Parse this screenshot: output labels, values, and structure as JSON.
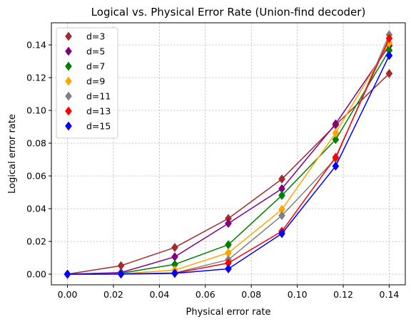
{
  "chart_data": {
    "type": "line",
    "title": "Logical vs. Physical Error Rate (Union-find decoder)",
    "xlabel": "Physical error rate",
    "ylabel": "Logical error rate",
    "xlim": [
      -0.007,
      0.147
    ],
    "ylim": [
      -0.0065,
      0.1535
    ],
    "xticks": [
      0.0,
      0.02,
      0.04,
      0.06,
      0.08,
      0.1,
      0.12,
      0.14
    ],
    "xtick_labels": [
      "0.00",
      "0.02",
      "0.04",
      "0.06",
      "0.08",
      "0.10",
      "0.12",
      "0.14"
    ],
    "yticks": [
      0.0,
      0.02,
      0.04,
      0.06,
      0.08,
      0.1,
      0.12,
      0.14
    ],
    "ytick_labels": [
      "0.00",
      "0.02",
      "0.04",
      "0.06",
      "0.08",
      "0.10",
      "0.12",
      "0.14"
    ],
    "grid": true,
    "legend_position": "top-left",
    "marker": "thin-diamond",
    "x": [
      0.0,
      0.0233,
      0.0467,
      0.07,
      0.0933,
      0.1167,
      0.14
    ],
    "series": [
      {
        "name": "d=3",
        "color": "#a52a2a",
        "values": [
          0.0,
          0.0052,
          0.0163,
          0.034,
          0.0581,
          0.0911,
          0.1225
        ]
      },
      {
        "name": "d=5",
        "color": "#800080",
        "values": [
          0.0,
          0.001,
          0.0106,
          0.031,
          0.0522,
          0.0918,
          0.1395
        ]
      },
      {
        "name": "d=7",
        "color": "#008000",
        "values": [
          0.0,
          0.0006,
          0.006,
          0.018,
          0.0481,
          0.0822,
          0.1367
        ]
      },
      {
        "name": "d=9",
        "color": "#ffa500",
        "values": [
          0.0,
          0.0003,
          0.0025,
          0.013,
          0.0395,
          0.0862,
          0.1412
        ]
      },
      {
        "name": "d=11",
        "color": "#808080",
        "values": [
          0.0,
          0.0002,
          0.0008,
          0.0088,
          0.0358,
          0.0705,
          0.1462
        ]
      },
      {
        "name": "d=13",
        "color": "#ff0000",
        "values": [
          0.0,
          0.0001,
          0.0006,
          0.0068,
          0.0262,
          0.0714,
          0.144
        ]
      },
      {
        "name": "d=15",
        "color": "#0000ff",
        "values": [
          0.0,
          0.0001,
          0.0005,
          0.0033,
          0.0248,
          0.066,
          0.1335
        ]
      }
    ]
  }
}
